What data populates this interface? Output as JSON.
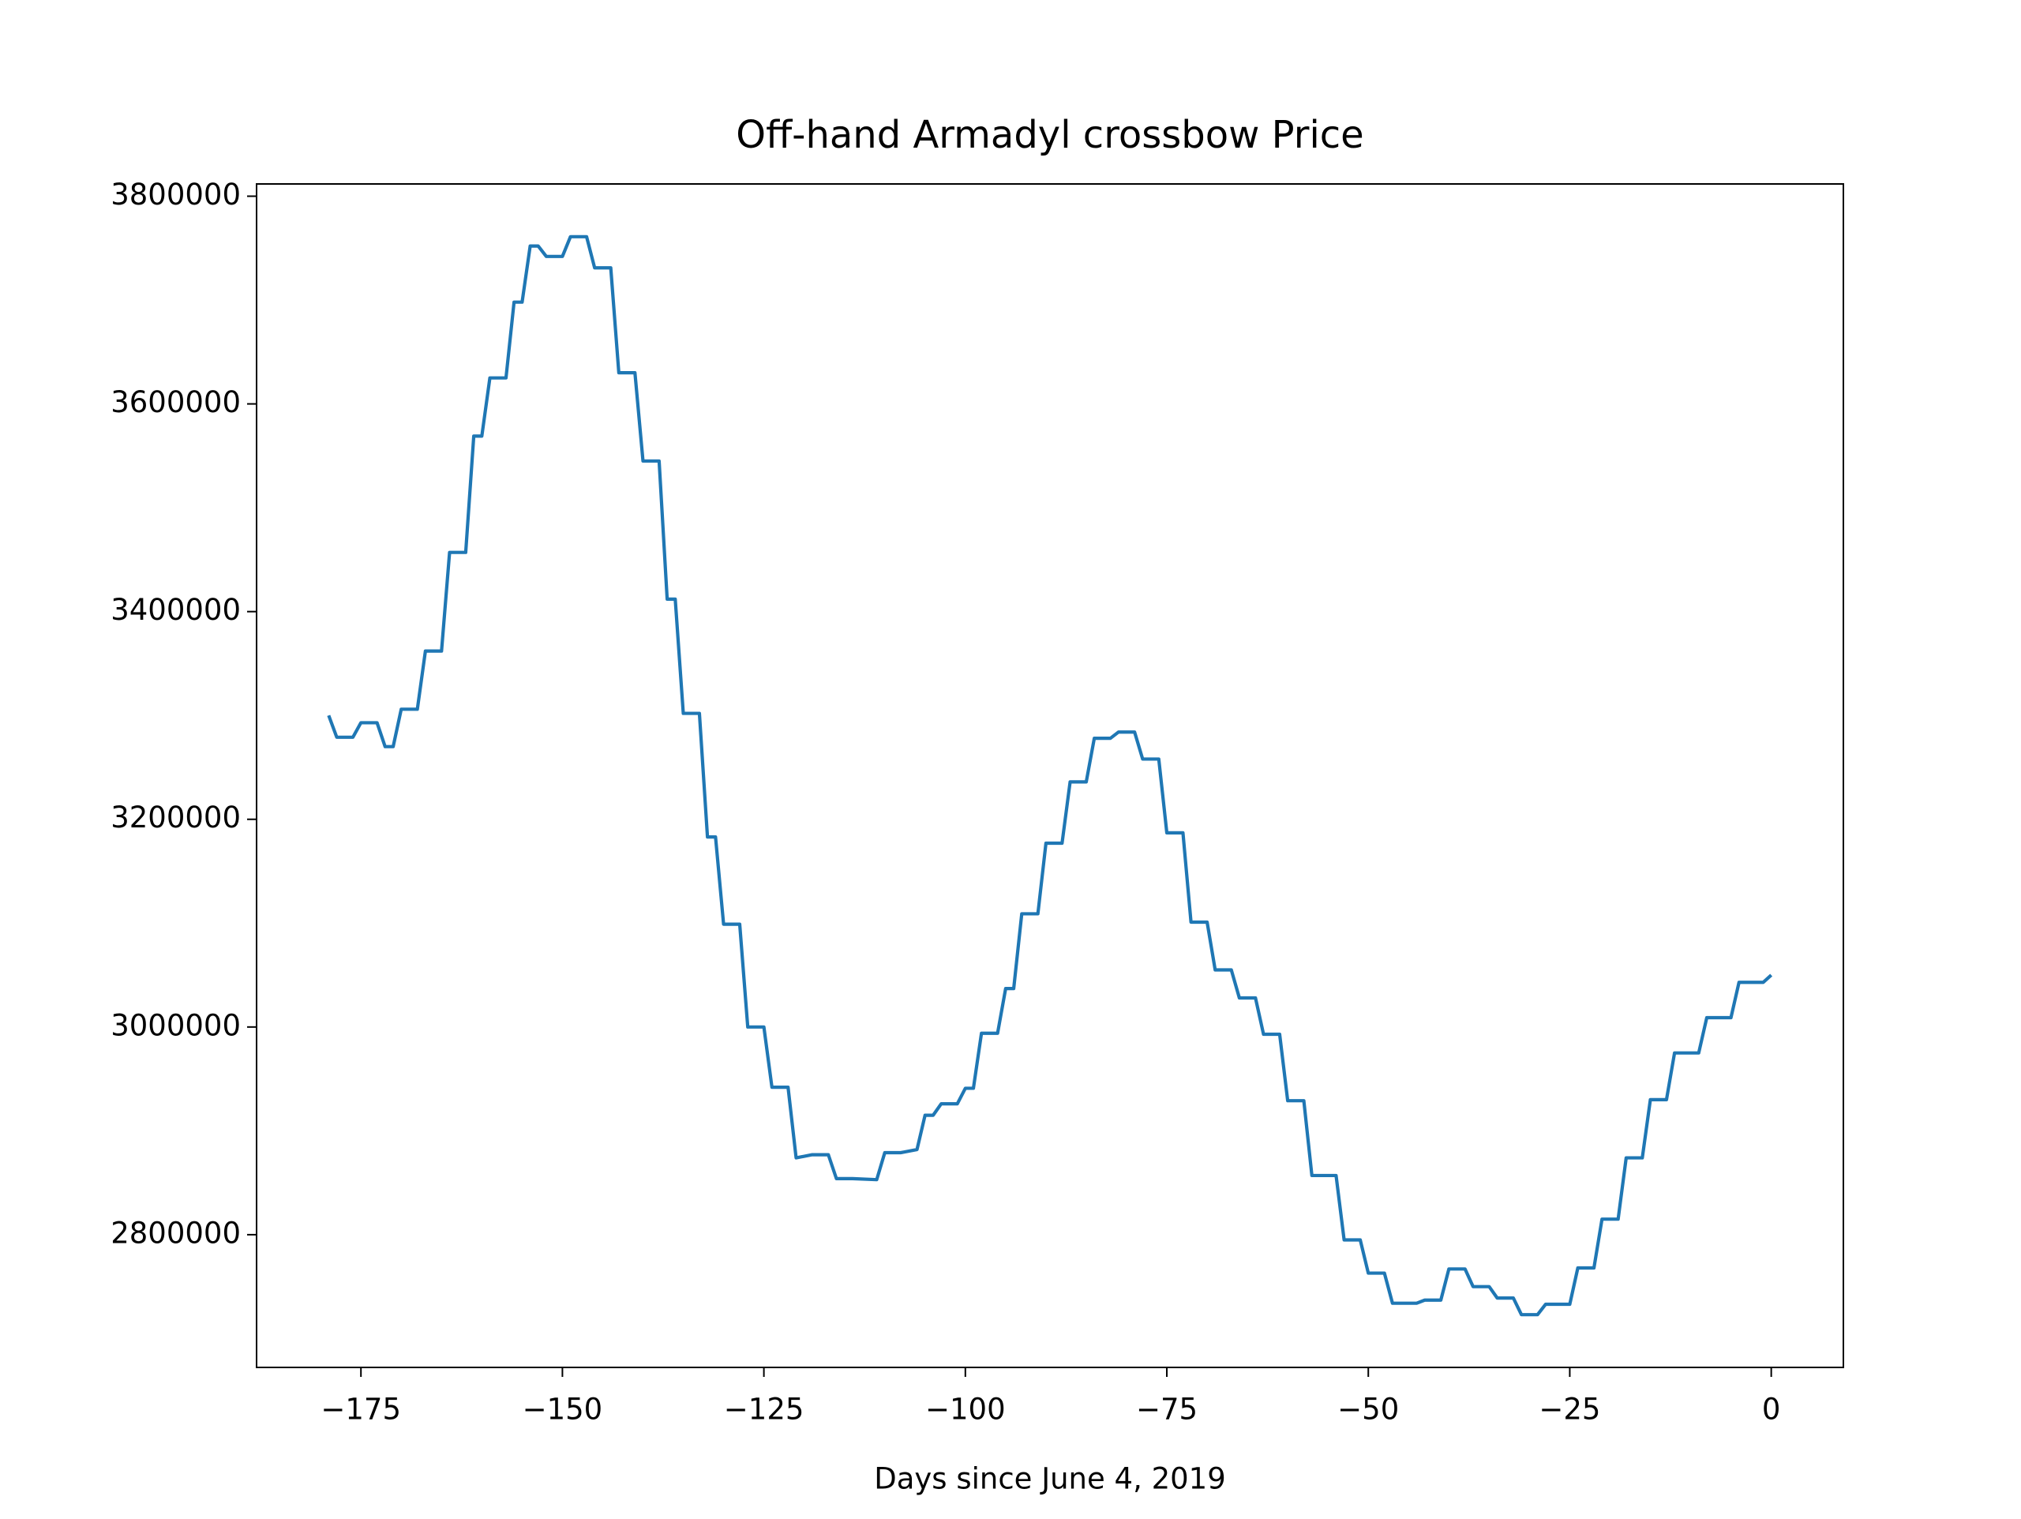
{
  "chart_data": {
    "type": "line",
    "title": "Off-hand Armadyl crossbow Price",
    "xlabel": "Days since June 4, 2019",
    "x": [
      -179,
      -178,
      -176,
      -175,
      -173,
      -172,
      -171,
      -170,
      -168,
      -167,
      -165,
      -164,
      -162,
      -161,
      -160,
      -159,
      -157,
      -156,
      -155,
      -154,
      -153,
      -152,
      -150,
      -149,
      -147,
      -146,
      -144,
      -143,
      -141,
      -140,
      -138,
      -137,
      -136,
      -135,
      -133,
      -132,
      -131,
      -130,
      -128,
      -127,
      -125,
      -124,
      -122,
      -121,
      -119,
      -117,
      -116,
      -114,
      -111,
      -110,
      -108,
      -106,
      -105,
      -104,
      -103,
      -101,
      -100,
      -99,
      -98,
      -96,
      -95,
      -94,
      -93,
      -91,
      -90,
      -88,
      -87,
      -85,
      -84,
      -82,
      -81,
      -79,
      -78,
      -76,
      -75,
      -73,
      -72,
      -70,
      -69,
      -67,
      -66,
      -64,
      -63,
      -61,
      -60,
      -58,
      -57,
      -54,
      -53,
      -51,
      -50,
      -48,
      -47,
      -44,
      -43,
      -41,
      -40,
      -38,
      -37,
      -35,
      -34,
      -32,
      -31,
      -29,
      -28,
      -25,
      -24,
      -22,
      -21,
      -19,
      -18,
      -16,
      -15,
      -13,
      -12,
      -9,
      -8,
      -5,
      -4,
      -1,
      0
    ],
    "series": [
      {
        "name": "Price",
        "color": "#1f77b4",
        "values": [
          3300000,
          3279000,
          3279000,
          3293000,
          3293000,
          3270000,
          3270000,
          3306000,
          3306000,
          3362000,
          3362000,
          3457000,
          3457000,
          3569000,
          3569000,
          3625000,
          3625000,
          3698000,
          3698000,
          3752000,
          3752000,
          3742000,
          3742000,
          3761000,
          3761000,
          3731000,
          3731000,
          3630000,
          3630000,
          3545000,
          3545000,
          3412000,
          3412000,
          3302000,
          3302000,
          3183000,
          3183000,
          3099000,
          3099000,
          3000000,
          3000000,
          2942000,
          2942000,
          2874000,
          2877000,
          2877000,
          2854000,
          2854000,
          2853000,
          2879000,
          2879000,
          2882000,
          2915000,
          2915000,
          2926000,
          2926000,
          2941000,
          2941000,
          2994000,
          2994000,
          3037000,
          3037000,
          3109000,
          3109000,
          3177000,
          3177000,
          3236000,
          3236000,
          3278000,
          3278000,
          3284000,
          3284000,
          3258000,
          3258000,
          3187000,
          3187000,
          3101000,
          3101000,
          3055000,
          3055000,
          3028000,
          3028000,
          2993000,
          2993000,
          2929000,
          2929000,
          2857000,
          2857000,
          2795000,
          2795000,
          2763000,
          2763000,
          2734000,
          2734000,
          2737000,
          2737000,
          2767000,
          2767000,
          2750000,
          2750000,
          2739000,
          2739000,
          2723000,
          2723000,
          2733000,
          2733000,
          2768000,
          2768000,
          2815000,
          2815000,
          2874000,
          2874000,
          2930000,
          2930000,
          2975000,
          2975000,
          3009000,
          3009000,
          3043000,
          3043000,
          3050000
        ]
      }
    ],
    "xlim": [
      -187.95,
      8.95
    ],
    "ylim": [
      2672200,
      3811800
    ],
    "xticks": [
      {
        "value": -175,
        "label": "−175"
      },
      {
        "value": -150,
        "label": "−150"
      },
      {
        "value": -125,
        "label": "−125"
      },
      {
        "value": -100,
        "label": "−100"
      },
      {
        "value": -75,
        "label": "−75"
      },
      {
        "value": -50,
        "label": "−50"
      },
      {
        "value": -25,
        "label": "−25"
      },
      0
    ],
    "yticks": [
      2800000,
      3000000,
      3200000,
      3400000,
      3600000,
      3800000
    ],
    "grid": false
  }
}
